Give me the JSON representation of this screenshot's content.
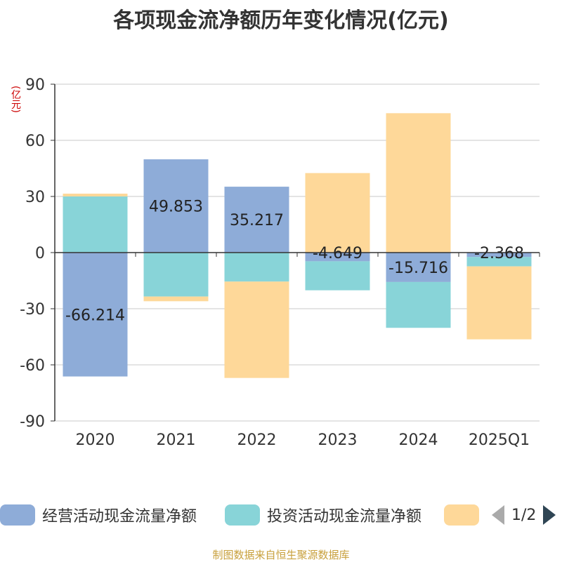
{
  "title": "各项现金流净额历年变化情况(亿元)",
  "unit_label": "(亿元)",
  "legend": {
    "items": [
      {
        "label": "经营活动现金流量净额",
        "color": "#8eacd8"
      },
      {
        "label": "投资活动现金流量净额",
        "color": "#88d4d8"
      },
      {
        "label": "",
        "color": "#fed899"
      }
    ],
    "pager": "1/2"
  },
  "source": "制图数据来自恒生聚源数据库",
  "chart_data": {
    "type": "bar",
    "stacked": true,
    "categories": [
      "2020",
      "2021",
      "2022",
      "2023",
      "2024",
      "2025Q1"
    ],
    "ylim": [
      -90,
      90
    ],
    "yticks": [
      90,
      60,
      30,
      0,
      -30,
      -60,
      -90
    ],
    "grid": true,
    "legend_position": "bottom",
    "series": [
      {
        "name": "经营活动现金流量净额",
        "color": "#8eacd8",
        "values": [
          -66.214,
          49.853,
          35.217,
          -4.649,
          -15.716,
          -2.368
        ],
        "labels": [
          "-66.214",
          "49.853",
          "35.217",
          "-4.649",
          "-15.716",
          "-2.368"
        ]
      },
      {
        "name": "投资活动现金流量净额",
        "color": "#88d4d8",
        "values": [
          30.0,
          -23.5,
          -15.5,
          -15.5,
          -24.5,
          -5.0
        ]
      },
      {
        "color": "#fed899",
        "values": [
          1.5,
          -2.5,
          -51.5,
          42.5,
          74.5,
          -39.0
        ]
      }
    ]
  }
}
